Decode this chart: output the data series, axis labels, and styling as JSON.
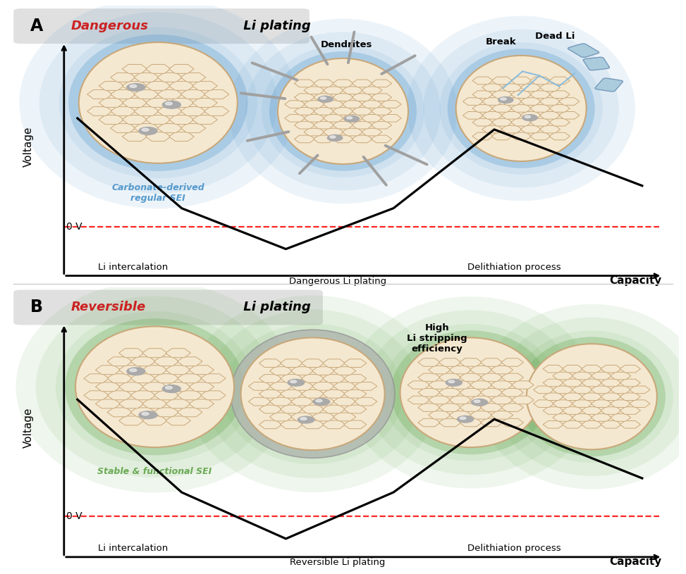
{
  "panel_A_title_red": "Dangerous",
  "panel_A_title_black": " Li plating",
  "panel_B_title_red": "Reversible",
  "panel_B_title_black": " Li plating",
  "label_A": "A",
  "label_B": "B",
  "voltage_label": "Voltage",
  "capacity_label": "Capacity",
  "zero_v_label": "0 V",
  "panel_A_annotations": {
    "carbonate": "Carbonate-derived\nregular SEI",
    "dendrites": "Dendrites",
    "break": "Break",
    "dead_li": "Dead Li",
    "li_intercalation": "Li intercalation",
    "dangerous_plating": "Dangerous Li plating",
    "delithiation": "Delithiation process"
  },
  "panel_B_annotations": {
    "stable_sei": "Stable & functional SEI",
    "high_efficiency": "High\nLi stripping\nefficiency",
    "li_intercalation": "Li intercalation",
    "reversible_plating": "Reversible Li plating",
    "delithiation": "Delithiation process"
  },
  "blue_sei_color": "#5599cc",
  "green_sei_color": "#6aaa55",
  "graphite_fill": "#f5e8d0",
  "graphite_edge": "#c8a87a",
  "title_bg_color": "#e0e0e0"
}
